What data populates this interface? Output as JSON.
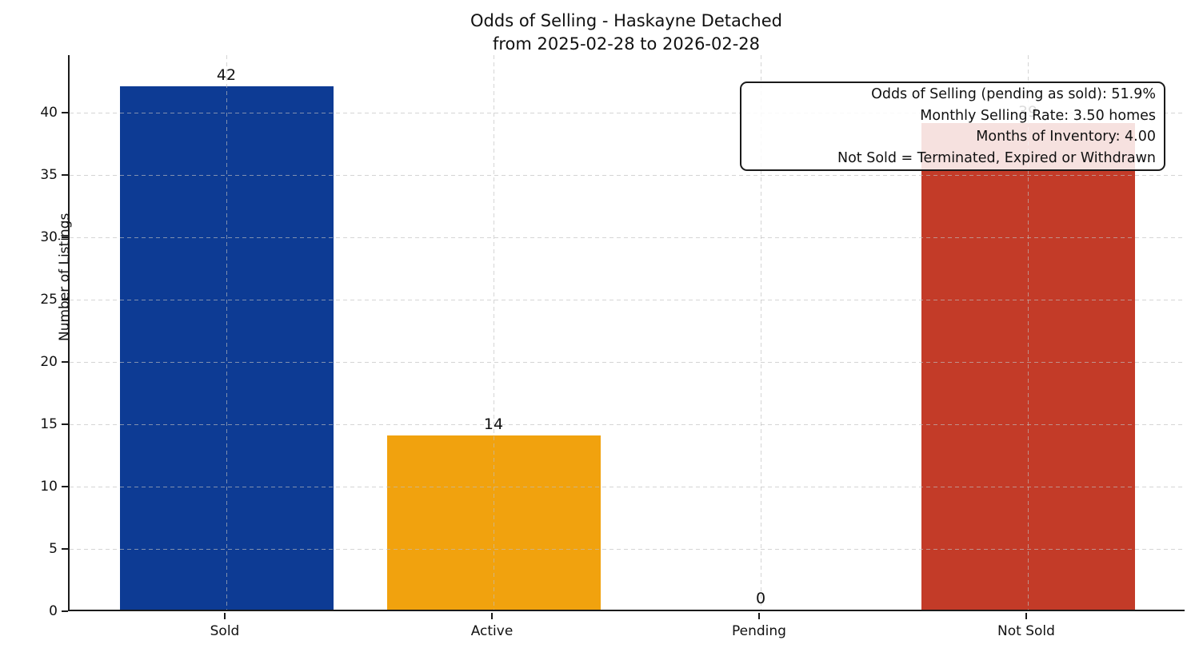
{
  "title": {
    "line1": "Odds of Selling - Haskayne Detached",
    "line2": "from 2025-02-28 to 2026-02-28"
  },
  "chart_data": {
    "type": "bar",
    "categories": [
      "Sold",
      "Active",
      "Pending",
      "Not Sold"
    ],
    "values": [
      42,
      14,
      0,
      39
    ],
    "bar_colors": [
      "#0d3b94",
      "#f1a20e",
      null,
      "#c33b28"
    ],
    "value_labels": [
      "42",
      "14",
      "0",
      "39"
    ],
    "ylabel": "Number of Listings",
    "xlabel": "",
    "yticks": [
      0,
      5,
      10,
      15,
      20,
      25,
      30,
      35,
      40
    ],
    "ylim": [
      0,
      44.6
    ],
    "grid": "dashed, horizontal and vertical, drawn over bars",
    "legend_position": "none",
    "annotation": {
      "lines": [
        "Odds of Selling (pending as sold): 51.9%",
        "Monthly Selling Rate: 3.50 homes",
        "Months of Inventory: 4.00",
        "Not Sold = Terminated, Expired or Withdrawn"
      ]
    }
  }
}
